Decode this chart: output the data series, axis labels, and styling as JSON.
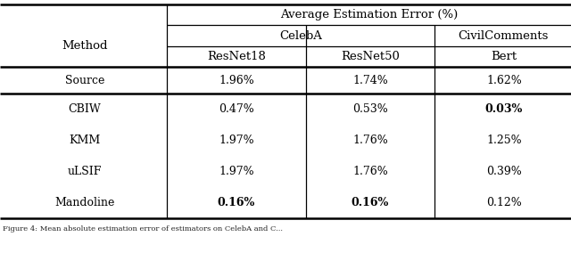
{
  "title": "Average Estimation Error (%)",
  "col_header_1": "Method",
  "col_header_2a": "CelebA",
  "col_header_2b": "CivilComments",
  "col_header_3a": "ResNet18",
  "col_header_3b": "ResNet50",
  "col_header_3c": "Bert",
  "rows": [
    {
      "method": "Source",
      "v1": "1.96%",
      "v2": "1.74%",
      "v3": "1.62%",
      "bold1": false,
      "bold2": false,
      "bold3": false,
      "style": "smallcaps"
    },
    {
      "method": "CBIW",
      "v1": "0.47%",
      "v2": "0.53%",
      "v3": "0.03%",
      "bold1": false,
      "bold2": false,
      "bold3": true,
      "style": "normal"
    },
    {
      "method": "KMM",
      "v1": "1.97%",
      "v2": "1.76%",
      "v3": "1.25%",
      "bold1": false,
      "bold2": false,
      "bold3": false,
      "style": "normal"
    },
    {
      "method": "uLSIF",
      "v1": "1.97%",
      "v2": "1.76%",
      "v3": "0.39%",
      "bold1": false,
      "bold2": false,
      "bold3": false,
      "style": "normal_u"
    },
    {
      "method": "Mandoline",
      "v1": "0.16%",
      "v2": "0.16%",
      "v3": "0.12%",
      "bold1": true,
      "bold2": true,
      "bold3": false,
      "style": "smallcaps"
    }
  ],
  "bg_color": "#ffffff",
  "text_color": "#000000",
  "caption": "Figure 4: Mean absolute estimation error of estimators on CelebA and C..."
}
